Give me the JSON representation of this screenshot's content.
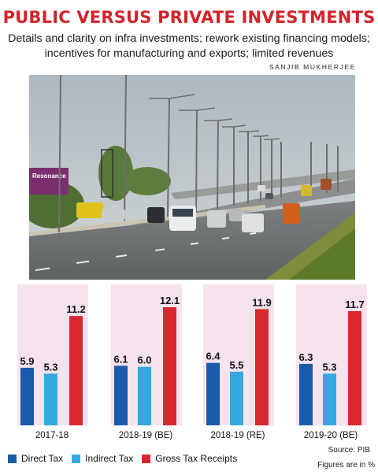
{
  "header": {
    "title": "PUBLIC VERSUS PRIVATE INVESTMENTS",
    "subtitle": "Details and clarity on infra investments; rework existing financing models; incentives for manufacturing and exports; limited revenues",
    "byline": "SANJIB MUKHERJEE"
  },
  "photo": {
    "billboard_text": "Resonance",
    "description_icon": "highway-photo"
  },
  "footer": {
    "source": "Source: PIB",
    "units": "Figures are in %"
  },
  "colors": {
    "title": "#d2232a",
    "direct": "#1a5cac",
    "indirect": "#35a8e0",
    "gross": "#d7282f",
    "panel_bg": "#f6e3ee"
  },
  "chart_data": {
    "type": "bar",
    "categories": [
      "2017-18",
      "2018-19 (BE)",
      "2018-19 (RE)",
      "2019-20 (BE)"
    ],
    "series": [
      {
        "name": "Direct Tax",
        "values": [
          5.9,
          6.1,
          6.4,
          6.3
        ]
      },
      {
        "name": "Indirect Tax",
        "values": [
          5.3,
          6.0,
          5.5,
          5.3
        ]
      },
      {
        "name": "Gross Tax Receipts",
        "values": [
          11.2,
          12.1,
          11.9,
          11.7
        ]
      }
    ],
    "title": "",
    "xlabel": "",
    "ylabel": "",
    "ylim": [
      0,
      12.1
    ],
    "grid": false,
    "legend": "bottom"
  }
}
